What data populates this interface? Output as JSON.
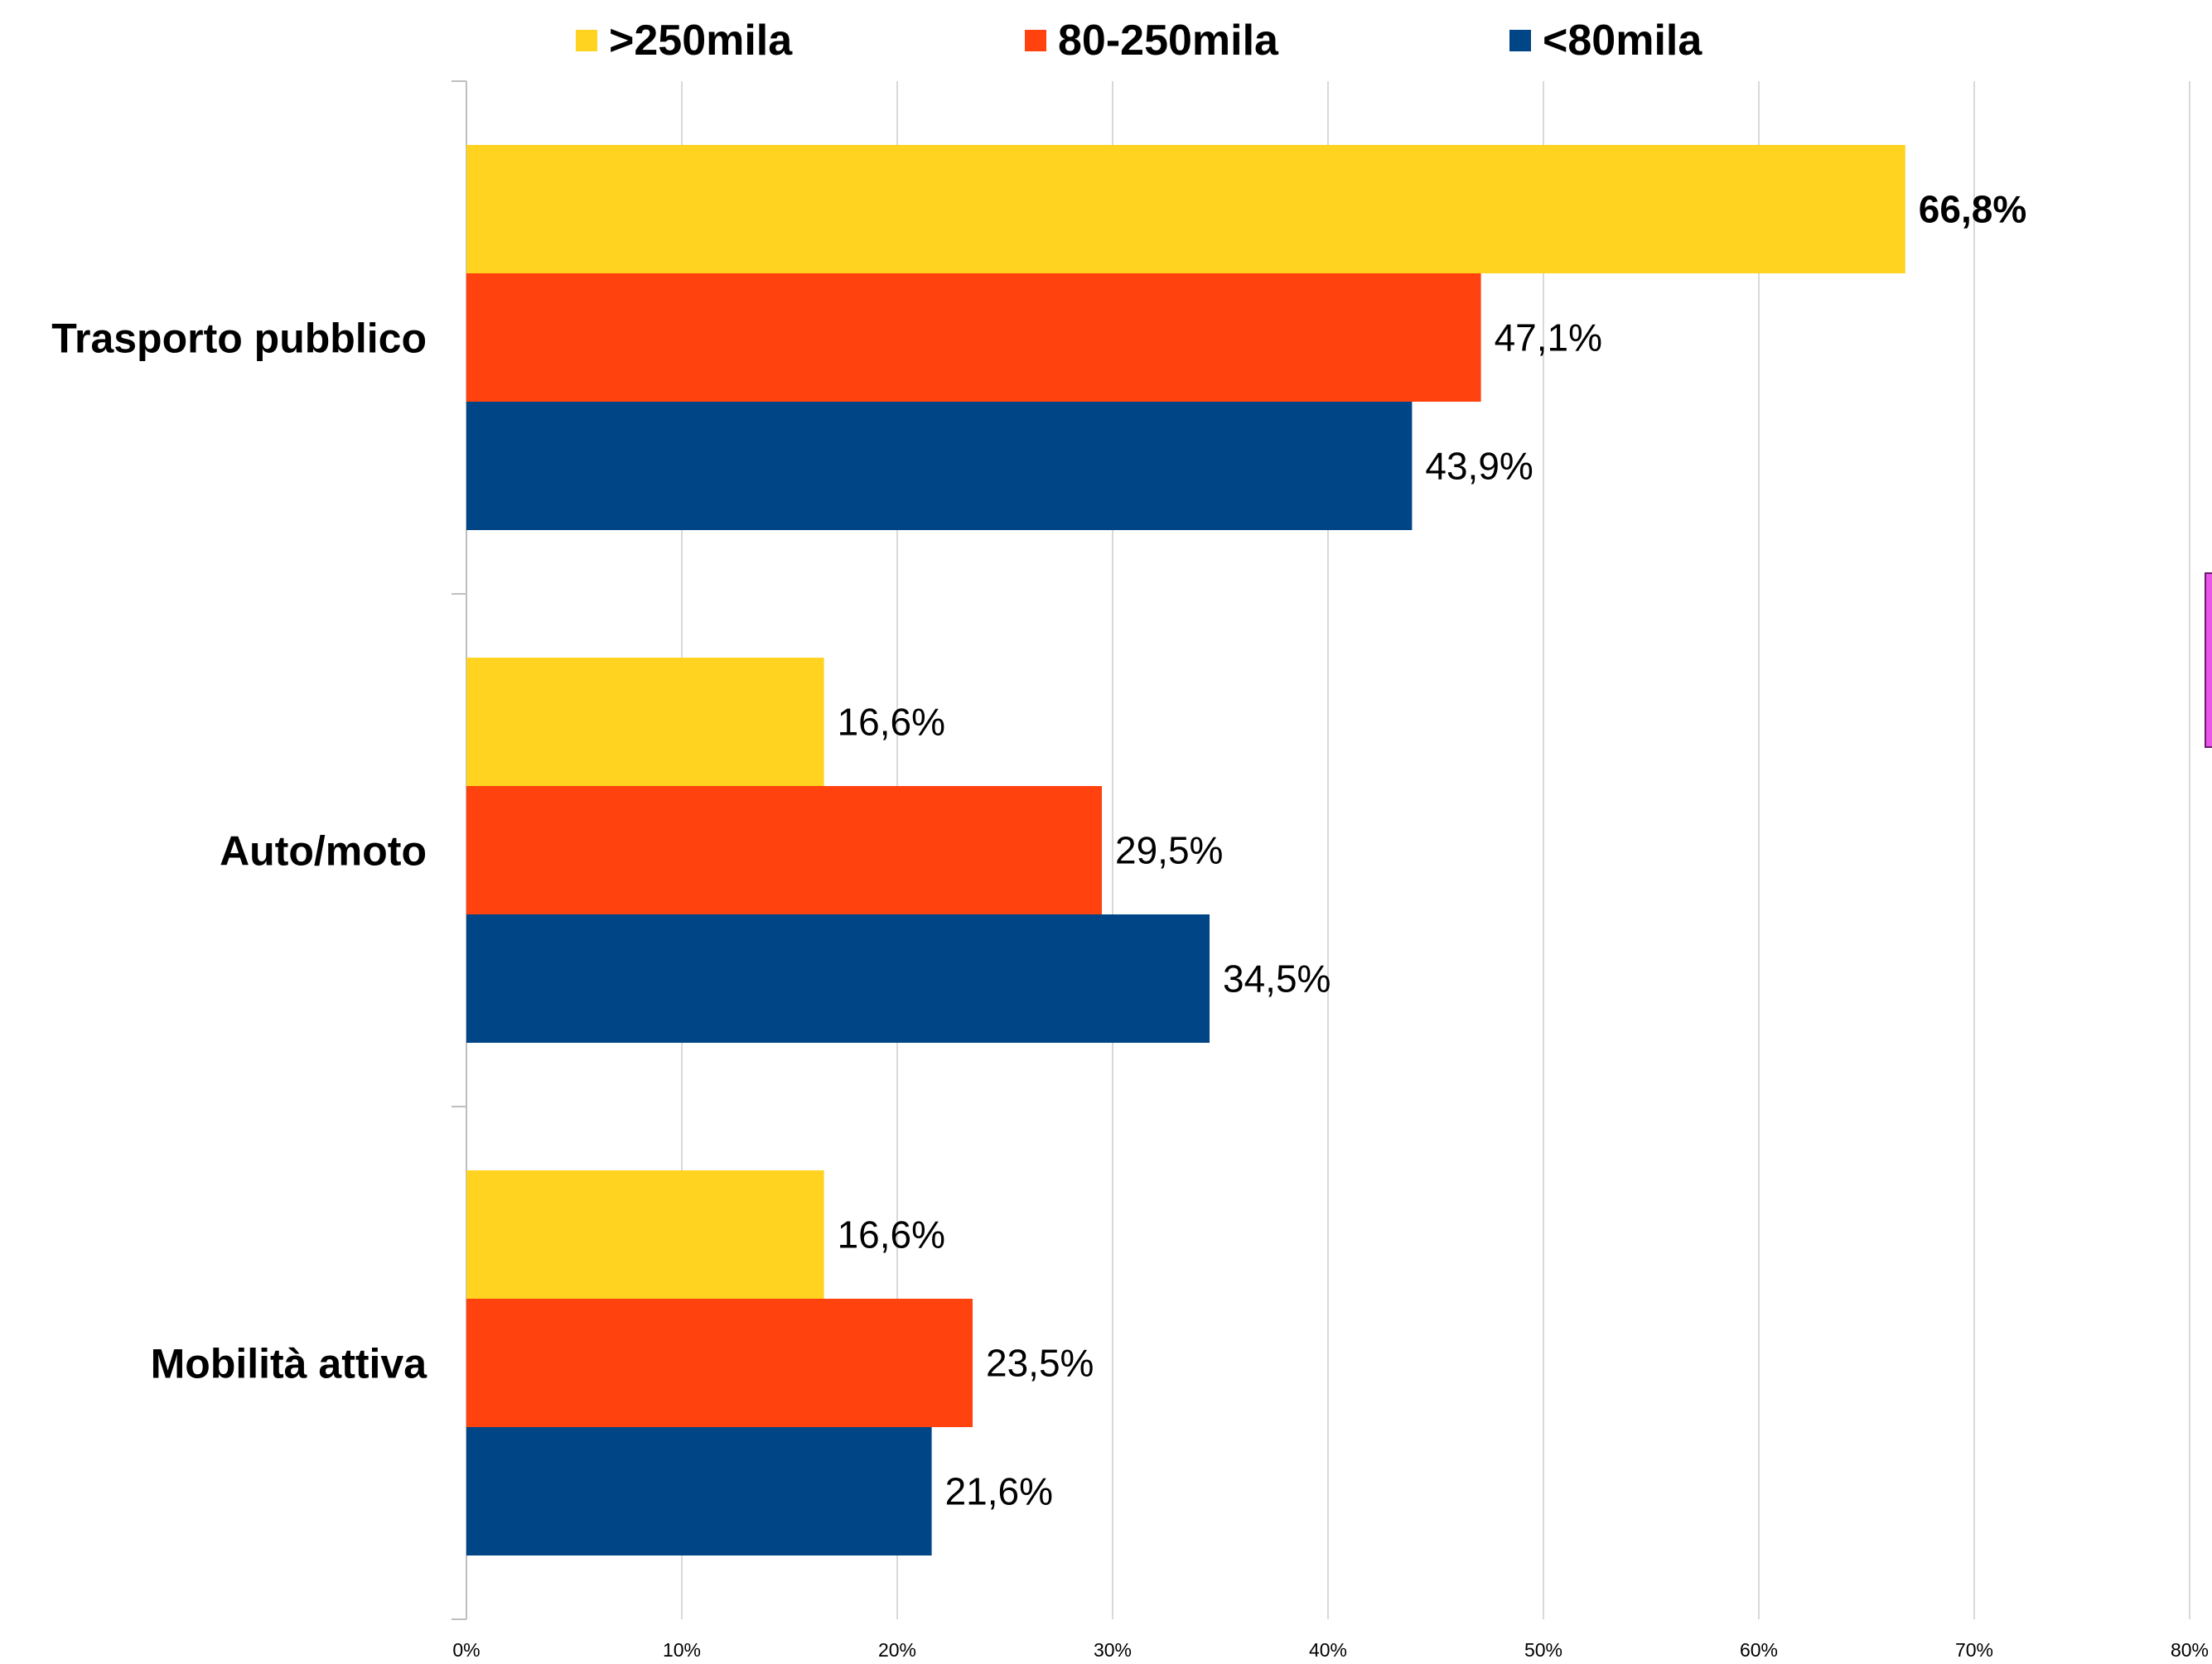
{
  "chart_data": {
    "type": "bar",
    "orientation": "horizontal",
    "categories": [
      "Trasporto pubblico",
      "Auto/moto",
      "Mobilità attiva"
    ],
    "series": [
      {
        "name": ">250mila",
        "color": "#FFD320",
        "values": [
          66.8,
          16.6,
          16.6
        ],
        "labels": [
          "66,8%",
          "16,6%",
          "16,6%"
        ]
      },
      {
        "name": "80-250mila",
        "color": "#FF420E",
        "values": [
          47.1,
          29.5,
          23.5
        ],
        "labels": [
          "47,1%",
          "29,5%",
          "23,5%"
        ]
      },
      {
        "name": "<80mila",
        "color": "#004586",
        "values": [
          43.9,
          34.5,
          21.6
        ],
        "labels": [
          "43,9%",
          "34,5%",
          "21,6%"
        ]
      }
    ],
    "xlim": [
      0,
      80
    ],
    "x_ticks": [
      "0%",
      "10%",
      "20%",
      "30%",
      "40%",
      "50%",
      "60%",
      "70%",
      "80%"
    ],
    "grid": true,
    "legend_position": "top",
    "bold_labels": [
      "66,8%"
    ],
    "title": "",
    "xlabel": "",
    "ylabel": ""
  }
}
